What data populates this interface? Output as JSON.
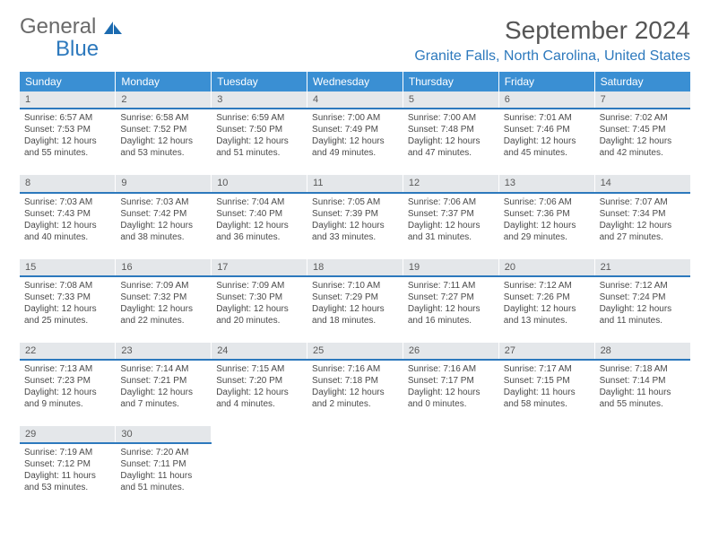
{
  "logo": {
    "line1": "General",
    "line2": "Blue"
  },
  "title": "September 2024",
  "location": "Granite Falls, North Carolina, United States",
  "colors": {
    "header_bg": "#3a8fd3",
    "header_text": "#ffffff",
    "daynum_bg": "#e4e7ea",
    "daynum_border": "#2d79bd",
    "body_text": "#4a4a4a",
    "title_text": "#555555",
    "location_text": "#2d79bd",
    "logo_gray": "#6a6a6a",
    "logo_blue": "#2d79bd"
  },
  "weekdays": [
    "Sunday",
    "Monday",
    "Tuesday",
    "Wednesday",
    "Thursday",
    "Friday",
    "Saturday"
  ],
  "weeks": [
    {
      "nums": [
        "1",
        "2",
        "3",
        "4",
        "5",
        "6",
        "7"
      ],
      "cells": [
        {
          "sunrise": "Sunrise: 6:57 AM",
          "sunset": "Sunset: 7:53 PM",
          "d1": "Daylight: 12 hours",
          "d2": "and 55 minutes."
        },
        {
          "sunrise": "Sunrise: 6:58 AM",
          "sunset": "Sunset: 7:52 PM",
          "d1": "Daylight: 12 hours",
          "d2": "and 53 minutes."
        },
        {
          "sunrise": "Sunrise: 6:59 AM",
          "sunset": "Sunset: 7:50 PM",
          "d1": "Daylight: 12 hours",
          "d2": "and 51 minutes."
        },
        {
          "sunrise": "Sunrise: 7:00 AM",
          "sunset": "Sunset: 7:49 PM",
          "d1": "Daylight: 12 hours",
          "d2": "and 49 minutes."
        },
        {
          "sunrise": "Sunrise: 7:00 AM",
          "sunset": "Sunset: 7:48 PM",
          "d1": "Daylight: 12 hours",
          "d2": "and 47 minutes."
        },
        {
          "sunrise": "Sunrise: 7:01 AM",
          "sunset": "Sunset: 7:46 PM",
          "d1": "Daylight: 12 hours",
          "d2": "and 45 minutes."
        },
        {
          "sunrise": "Sunrise: 7:02 AM",
          "sunset": "Sunset: 7:45 PM",
          "d1": "Daylight: 12 hours",
          "d2": "and 42 minutes."
        }
      ]
    },
    {
      "nums": [
        "8",
        "9",
        "10",
        "11",
        "12",
        "13",
        "14"
      ],
      "cells": [
        {
          "sunrise": "Sunrise: 7:03 AM",
          "sunset": "Sunset: 7:43 PM",
          "d1": "Daylight: 12 hours",
          "d2": "and 40 minutes."
        },
        {
          "sunrise": "Sunrise: 7:03 AM",
          "sunset": "Sunset: 7:42 PM",
          "d1": "Daylight: 12 hours",
          "d2": "and 38 minutes."
        },
        {
          "sunrise": "Sunrise: 7:04 AM",
          "sunset": "Sunset: 7:40 PM",
          "d1": "Daylight: 12 hours",
          "d2": "and 36 minutes."
        },
        {
          "sunrise": "Sunrise: 7:05 AM",
          "sunset": "Sunset: 7:39 PM",
          "d1": "Daylight: 12 hours",
          "d2": "and 33 minutes."
        },
        {
          "sunrise": "Sunrise: 7:06 AM",
          "sunset": "Sunset: 7:37 PM",
          "d1": "Daylight: 12 hours",
          "d2": "and 31 minutes."
        },
        {
          "sunrise": "Sunrise: 7:06 AM",
          "sunset": "Sunset: 7:36 PM",
          "d1": "Daylight: 12 hours",
          "d2": "and 29 minutes."
        },
        {
          "sunrise": "Sunrise: 7:07 AM",
          "sunset": "Sunset: 7:34 PM",
          "d1": "Daylight: 12 hours",
          "d2": "and 27 minutes."
        }
      ]
    },
    {
      "nums": [
        "15",
        "16",
        "17",
        "18",
        "19",
        "20",
        "21"
      ],
      "cells": [
        {
          "sunrise": "Sunrise: 7:08 AM",
          "sunset": "Sunset: 7:33 PM",
          "d1": "Daylight: 12 hours",
          "d2": "and 25 minutes."
        },
        {
          "sunrise": "Sunrise: 7:09 AM",
          "sunset": "Sunset: 7:32 PM",
          "d1": "Daylight: 12 hours",
          "d2": "and 22 minutes."
        },
        {
          "sunrise": "Sunrise: 7:09 AM",
          "sunset": "Sunset: 7:30 PM",
          "d1": "Daylight: 12 hours",
          "d2": "and 20 minutes."
        },
        {
          "sunrise": "Sunrise: 7:10 AM",
          "sunset": "Sunset: 7:29 PM",
          "d1": "Daylight: 12 hours",
          "d2": "and 18 minutes."
        },
        {
          "sunrise": "Sunrise: 7:11 AM",
          "sunset": "Sunset: 7:27 PM",
          "d1": "Daylight: 12 hours",
          "d2": "and 16 minutes."
        },
        {
          "sunrise": "Sunrise: 7:12 AM",
          "sunset": "Sunset: 7:26 PM",
          "d1": "Daylight: 12 hours",
          "d2": "and 13 minutes."
        },
        {
          "sunrise": "Sunrise: 7:12 AM",
          "sunset": "Sunset: 7:24 PM",
          "d1": "Daylight: 12 hours",
          "d2": "and 11 minutes."
        }
      ]
    },
    {
      "nums": [
        "22",
        "23",
        "24",
        "25",
        "26",
        "27",
        "28"
      ],
      "cells": [
        {
          "sunrise": "Sunrise: 7:13 AM",
          "sunset": "Sunset: 7:23 PM",
          "d1": "Daylight: 12 hours",
          "d2": "and 9 minutes."
        },
        {
          "sunrise": "Sunrise: 7:14 AM",
          "sunset": "Sunset: 7:21 PM",
          "d1": "Daylight: 12 hours",
          "d2": "and 7 minutes."
        },
        {
          "sunrise": "Sunrise: 7:15 AM",
          "sunset": "Sunset: 7:20 PM",
          "d1": "Daylight: 12 hours",
          "d2": "and 4 minutes."
        },
        {
          "sunrise": "Sunrise: 7:16 AM",
          "sunset": "Sunset: 7:18 PM",
          "d1": "Daylight: 12 hours",
          "d2": "and 2 minutes."
        },
        {
          "sunrise": "Sunrise: 7:16 AM",
          "sunset": "Sunset: 7:17 PM",
          "d1": "Daylight: 12 hours",
          "d2": "and 0 minutes."
        },
        {
          "sunrise": "Sunrise: 7:17 AM",
          "sunset": "Sunset: 7:15 PM",
          "d1": "Daylight: 11 hours",
          "d2": "and 58 minutes."
        },
        {
          "sunrise": "Sunrise: 7:18 AM",
          "sunset": "Sunset: 7:14 PM",
          "d1": "Daylight: 11 hours",
          "d2": "and 55 minutes."
        }
      ]
    },
    {
      "nums": [
        "29",
        "30",
        "",
        "",
        "",
        "",
        ""
      ],
      "cells": [
        {
          "sunrise": "Sunrise: 7:19 AM",
          "sunset": "Sunset: 7:12 PM",
          "d1": "Daylight: 11 hours",
          "d2": "and 53 minutes."
        },
        {
          "sunrise": "Sunrise: 7:20 AM",
          "sunset": "Sunset: 7:11 PM",
          "d1": "Daylight: 11 hours",
          "d2": "and 51 minutes."
        },
        null,
        null,
        null,
        null,
        null
      ]
    }
  ]
}
